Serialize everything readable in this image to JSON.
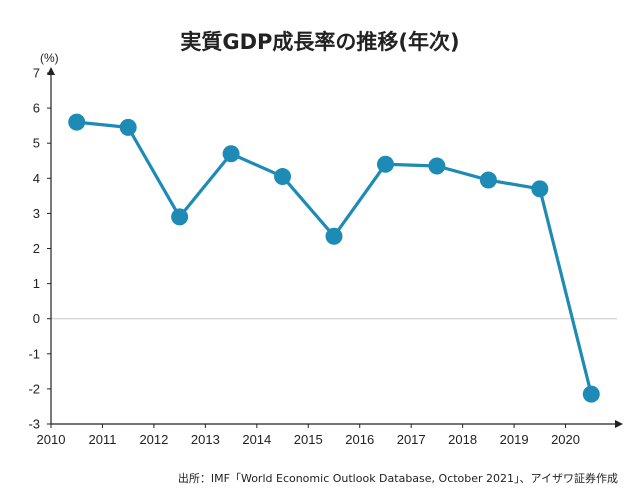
{
  "chart_data": {
    "type": "line",
    "title": "実質GDP成長率の推移(年次)",
    "ylabel": "(%)",
    "xlabel": "",
    "x_ticks": [
      "2010",
      "2011",
      "2012",
      "2013",
      "2014",
      "2015",
      "2016",
      "2017",
      "2018",
      "2019",
      "2020"
    ],
    "y_ticks": [
      "7",
      "6",
      "5",
      "4",
      "3",
      "2",
      "1",
      "0",
      "-1",
      "-2",
      "-3"
    ],
    "xlim": [
      2010,
      2021
    ],
    "ylim": [
      -3,
      7
    ],
    "grid": false,
    "zero_line": true,
    "color": "#1d8bb5",
    "series": [
      {
        "x": [
          2010.5,
          2011.5,
          2012.5,
          2013.5,
          2014.5,
          2015.5,
          2016.5,
          2017.5,
          2018.5,
          2019.5,
          2020.5
        ],
        "values": [
          5.6,
          5.45,
          2.9,
          4.7,
          4.05,
          2.35,
          4.4,
          4.35,
          3.95,
          3.7,
          -2.15
        ]
      }
    ],
    "source": "出所：IMF「World Economic Outlook Database, October 2021」、アイザワ証券作成"
  }
}
